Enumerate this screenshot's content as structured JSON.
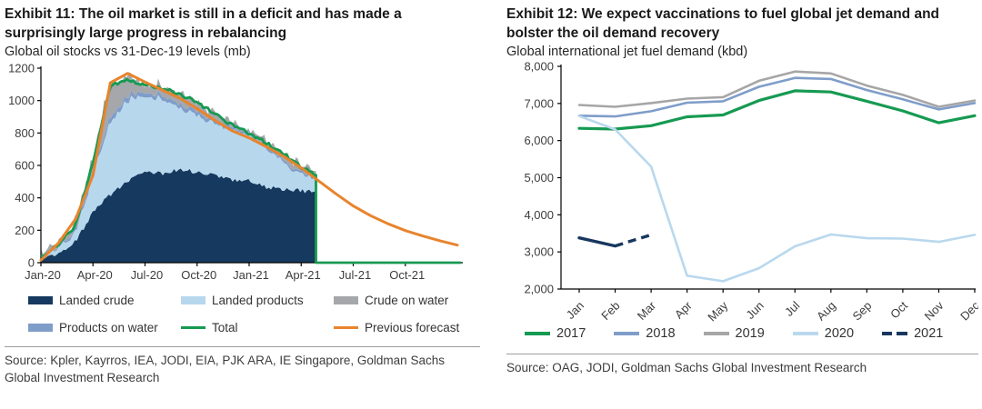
{
  "page": {
    "background": "#ffffff"
  },
  "panels": {
    "left": {
      "title": "Exhibit 11: The oil market is still in a deficit and has made a surprisingly large progress in rebalancing",
      "subtitle": "Global oil stocks vs 31-Dec-19 levels (mb)",
      "source": "Source: Kpler, Kayrros, IEA, JODI, EIA, PJK ARA, IE Singapore, Goldman Sachs Global Investment Research"
    },
    "right": {
      "title": "Exhibit 12: We expect vaccinations to fuel global jet demand and bolster the oil demand recovery",
      "subtitle": "Global international jet fuel demand (kbd)",
      "source": "Source: OAG, JODI, Goldman Sachs Global Investment Research"
    }
  },
  "chart_data": [
    {
      "type": "area",
      "title": "Global oil stocks vs 31-Dec-19 levels (mb)",
      "categories": [
        "Jan-20",
        "Feb-20",
        "Mar-20",
        "Apr-20",
        "May-20",
        "Jun-20",
        "Jul-20",
        "Aug-20",
        "Sep-20",
        "Oct-20",
        "Nov-20",
        "Dec-20",
        "Jan-21",
        "Feb-21",
        "Mar-21",
        "Apr-21",
        "May-21"
      ],
      "x_axis": {
        "tick_labels": [
          "Jan-20",
          "Apr-20",
          "Jul-20",
          "Oct-20",
          "Jan-21",
          "Apr-21",
          "Jul-21",
          "Oct-21"
        ],
        "months_per_tick": 3,
        "total_months": 24.3
      },
      "y_axis": {
        "min": 0,
        "max": 1200,
        "step": 200
      },
      "cutoff_month": 15.85,
      "stack_series": [
        {
          "name": "Landed crude",
          "color": "#16395f",
          "values": [
            15,
            55,
            130,
            310,
            420,
            500,
            570,
            545,
            580,
            555,
            540,
            515,
            505,
            465,
            455,
            445,
            435
          ]
        },
        {
          "name": "Landed products",
          "color": "#b7d7ed",
          "values": [
            10,
            30,
            60,
            230,
            440,
            500,
            460,
            455,
            380,
            355,
            320,
            305,
            275,
            235,
            165,
            100,
            65
          ]
        },
        {
          "name": "Products on water",
          "color": "#7f9dc9",
          "values": [
            5,
            10,
            15,
            25,
            30,
            30,
            25,
            25,
            25,
            25,
            20,
            20,
            15,
            15,
            15,
            15,
            10
          ]
        },
        {
          "name": "Crude on water",
          "color": "#a5a7aa",
          "values": [
            10,
            35,
            60,
            80,
            200,
            105,
            55,
            60,
            60,
            60,
            45,
            18,
            12,
            30,
            40,
            35,
            25
          ]
        }
      ],
      "line_series": [
        {
          "name": "Total",
          "color": "#169a52",
          "width": 2.8,
          "values": [
            30,
            110,
            230,
            620,
            1090,
            1130,
            1100,
            1075,
            1040,
            990,
            920,
            850,
            800,
            740,
            670,
            590,
            535
          ],
          "drops_to_zero_at_month": 15.85,
          "zero_until_month": 24.2
        },
        {
          "name": "Previous forecast",
          "color": "#e8842d",
          "width": 3,
          "values": [
            15,
            120,
            270,
            540,
            1110,
            1168,
            1115,
            1065,
            1015,
            950,
            880,
            815,
            770,
            715,
            655,
            585,
            505,
            425,
            350,
            290,
            240,
            198,
            165,
            135,
            108
          ]
        }
      ],
      "legend": [
        {
          "label": "Landed crude",
          "color": "#16395f",
          "kind": "area"
        },
        {
          "label": "Landed products",
          "color": "#b7d7ed",
          "kind": "area"
        },
        {
          "label": "Crude on water",
          "color": "#a5a7aa",
          "kind": "area"
        },
        {
          "label": "Products on water",
          "color": "#7f9dc9",
          "kind": "area"
        },
        {
          "label": "Total",
          "color": "#169a52",
          "kind": "line"
        },
        {
          "label": "Previous forecast",
          "color": "#e8842d",
          "kind": "line"
        }
      ]
    },
    {
      "type": "line",
      "title": "Global international jet fuel demand (kbd)",
      "categories": [
        "Jan",
        "Feb",
        "Mar",
        "Apr",
        "May",
        "Jun",
        "Jul",
        "Aug",
        "Sep",
        "Oct",
        "Nov",
        "Dec"
      ],
      "y_axis": {
        "min": 2000,
        "max": 8000,
        "step": 1000
      },
      "series": [
        {
          "name": "2017",
          "color": "#169a52",
          "width": 3.2,
          "values": [
            6330,
            6310,
            6400,
            6640,
            6690,
            7080,
            7340,
            7310,
            7060,
            6800,
            6480,
            6670
          ]
        },
        {
          "name": "2018",
          "color": "#7f9dc9",
          "width": 2.6,
          "values": [
            6670,
            6650,
            6790,
            7020,
            7060,
            7450,
            7690,
            7660,
            7360,
            7110,
            6840,
            7010
          ]
        },
        {
          "name": "2019",
          "color": "#a6a6a6",
          "width": 2.6,
          "values": [
            6960,
            6910,
            7010,
            7130,
            7170,
            7610,
            7860,
            7810,
            7480,
            7230,
            6910,
            7080
          ]
        },
        {
          "name": "2020",
          "color": "#b9d8ee",
          "width": 2.6,
          "values": [
            6660,
            6300,
            5300,
            2360,
            2210,
            2560,
            3150,
            3470,
            3370,
            3360,
            3270,
            3460
          ]
        },
        {
          "name": "2021",
          "color": "#17375e",
          "width": 3.4,
          "values": [
            3380,
            3160,
            3460
          ],
          "dash_from_index": 1,
          "dash_pattern": "9 6"
        }
      ],
      "legend": [
        {
          "label": "2017",
          "color": "#169a52",
          "kind": "line"
        },
        {
          "label": "2018",
          "color": "#7f9dc9",
          "kind": "line"
        },
        {
          "label": "2019",
          "color": "#a6a6a6",
          "kind": "line"
        },
        {
          "label": "2020",
          "color": "#b9d8ee",
          "kind": "line"
        },
        {
          "label": "2021",
          "color": "#17375e",
          "kind": "line",
          "dashed": true
        }
      ]
    }
  ]
}
